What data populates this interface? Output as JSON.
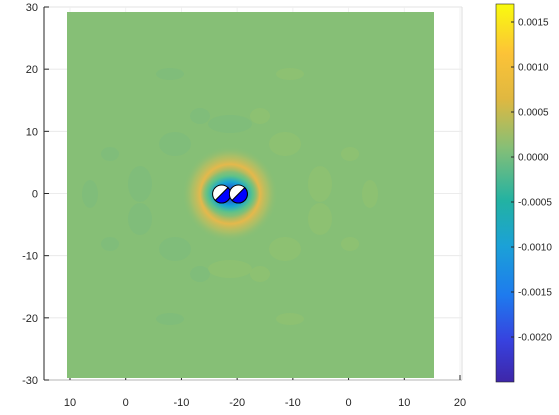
{
  "chart_data": {
    "type": "heatmap",
    "title": "",
    "xlabel": "",
    "ylabel": "",
    "colormap": "parula",
    "grid": true,
    "y_axis": {
      "ylim": [
        -30,
        30
      ],
      "ticks": [
        30,
        20,
        10,
        0,
        -10,
        -20,
        -30
      ],
      "tick_labels": [
        "30",
        "20",
        "10",
        "0",
        "-10",
        "-20",
        "-30"
      ]
    },
    "x_axis": {
      "tick_labels": [
        "10",
        "0",
        "-10",
        "-20",
        "-10",
        "0",
        "10",
        "20"
      ]
    },
    "colorbar": {
      "clim": [
        -0.0025,
        0.0017
      ],
      "ticks": [
        0.0015,
        0.001,
        0.0005,
        0.0,
        -0.0005,
        -0.001,
        -0.0015,
        -0.002
      ],
      "tick_labels": [
        "0.0015",
        "0.0010",
        "0.0005",
        "0.0000",
        "-0.0005",
        "-0.0010",
        "-0.0015",
        "-0.0020"
      ],
      "location": "right"
    },
    "field": {
      "background_value": 0.0,
      "central_min_value": -0.0025,
      "ring_max_value": 0.0012,
      "center": [
        -20,
        0
      ]
    },
    "markers": [
      {
        "kind": "half-filled-circle",
        "x": -24,
        "y": 0,
        "fill": "#0000ff"
      },
      {
        "kind": "half-filled-circle",
        "x": -16,
        "y": 0,
        "fill": "#0000ff"
      }
    ]
  }
}
